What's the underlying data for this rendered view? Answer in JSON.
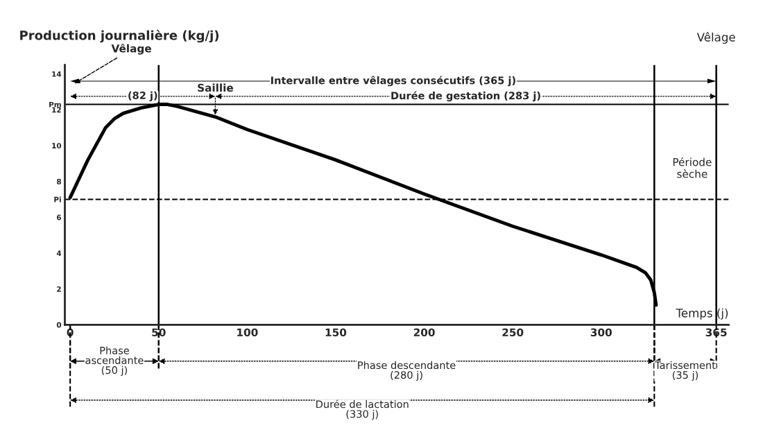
{
  "chart_data": {
    "type": "line",
    "ylabel": "Production journalière (kg/j)",
    "xlabel": "Temps (j)",
    "x": [
      0,
      10,
      20,
      25,
      30,
      40,
      50,
      55,
      60,
      82,
      100,
      150,
      200,
      250,
      300,
      320,
      325,
      328,
      330,
      331
    ],
    "series": [
      {
        "color": "#000000",
        "values": [
          7.1,
          9.2,
          11.0,
          11.5,
          11.8,
          12.1,
          12.3,
          12.3,
          12.2,
          11.6,
          10.9,
          9.2,
          7.3,
          5.5,
          3.9,
          3.2,
          2.9,
          2.5,
          1.8,
          1.1
        ]
      }
    ],
    "xlim": [
      -3,
      372
    ],
    "ylim": [
      0,
      14.5
    ],
    "xticks": [
      0,
      50,
      100,
      150,
      200,
      250,
      300,
      365
    ],
    "yticks": [
      0,
      2,
      4,
      6,
      8,
      10,
      12,
      14,
      {
        "value": 12.3,
        "label": "Pm"
      },
      {
        "value": 7,
        "label": "Pi"
      }
    ],
    "grid": false,
    "legend": false,
    "marker": "none",
    "line_style": "solid",
    "ref_lines": [
      {
        "axis": "x",
        "value": 50
      },
      {
        "axis": "y",
        "value": 12.3
      },
      {
        "axis": "y",
        "value": 7,
        "line_style": "dashed"
      },
      {
        "axis": "x",
        "value": 330
      },
      {
        "axis": "x",
        "value": 365,
        "label": "Vêlage"
      }
    ],
    "annotations": [
      "Vêlage",
      {
        "text": "Saillie",
        "x": 82,
        "y": 11.6
      },
      "Période\nsèche",
      "Intervalle entre vêlages consécutifs (365 j)",
      "Durée de gestation (283 j)",
      "(82 j)",
      "Phase\nascendante\n(50 j)",
      "Phase descendante\n(280 j)",
      "Tarissement\n(35 j)",
      "Durée de lactation\n(330 j)"
    ]
  }
}
